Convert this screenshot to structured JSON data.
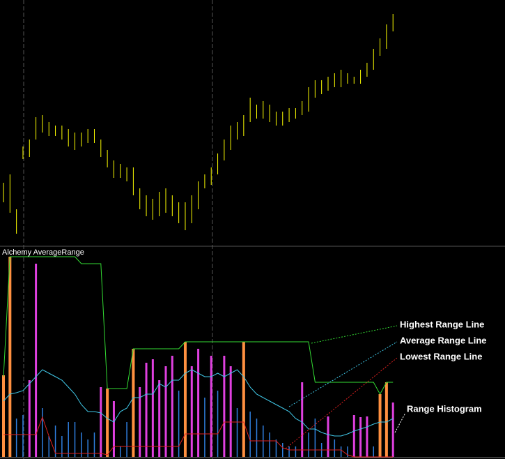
{
  "chart_data": [
    {
      "type": "ohlc",
      "color": "#ffff00",
      "ylim": [
        0,
        350
      ],
      "high": [
        88,
        100,
        50,
        140,
        150,
        182,
        185,
        175,
        170,
        170,
        165,
        160,
        160,
        165,
        165,
        150,
        135,
        120,
        115,
        110,
        110,
        80,
        70,
        65,
        75,
        80,
        70,
        60,
        60,
        70,
        90,
        100,
        110,
        130,
        150,
        170,
        175,
        185,
        210,
        200,
        205,
        200,
        190,
        190,
        195,
        195,
        205,
        225,
        235,
        235,
        240,
        245,
        250,
        245,
        240,
        250,
        260,
        280,
        295,
        315,
        330
      ],
      "low": [
        60,
        45,
        15,
        122,
        125,
        150,
        160,
        155,
        155,
        150,
        140,
        135,
        140,
        145,
        145,
        125,
        110,
        95,
        95,
        90,
        70,
        50,
        40,
        35,
        40,
        45,
        40,
        30,
        20,
        30,
        50,
        80,
        85,
        100,
        120,
        135,
        150,
        155,
        175,
        180,
        180,
        175,
        170,
        170,
        175,
        180,
        185,
        190,
        210,
        215,
        220,
        225,
        225,
        230,
        230,
        230,
        240,
        250,
        270,
        280,
        305
      ]
    },
    {
      "type": "line",
      "title": "Alchemy AverageRange",
      "ylim": [
        0,
        300
      ],
      "series": [
        {
          "name": "Highest Range Line",
          "color": "#33dd33",
          "values": [
            115,
            287,
            287,
            287,
            287,
            287,
            287,
            287,
            287,
            287,
            287,
            287,
            277,
            277,
            277,
            277,
            98,
            98,
            98,
            98,
            155,
            155,
            155,
            155,
            155,
            155,
            155,
            155,
            165,
            165,
            165,
            165,
            165,
            165,
            165,
            165,
            165,
            165,
            165,
            165,
            165,
            165,
            165,
            165,
            165,
            165,
            165,
            165,
            107,
            107,
            107,
            107,
            107,
            107,
            107,
            107,
            107,
            107,
            90,
            107,
            107
          ]
        },
        {
          "name": "Average Range Line",
          "color": "#40c8e8",
          "values": [
            80,
            90,
            92,
            95,
            105,
            115,
            125,
            120,
            115,
            110,
            100,
            90,
            75,
            65,
            65,
            63,
            55,
            50,
            65,
            70,
            85,
            85,
            90,
            90,
            105,
            100,
            110,
            110,
            120,
            125,
            120,
            115,
            115,
            120,
            115,
            120,
            125,
            115,
            100,
            90,
            85,
            80,
            75,
            70,
            65,
            55,
            50,
            40,
            40,
            35,
            32,
            30,
            30,
            33,
            37,
            40,
            43,
            47,
            50,
            50,
            55
          ]
        },
        {
          "name": "Lowest Range Line",
          "color": "#e02020",
          "values": [
            32,
            32,
            32,
            32,
            32,
            32,
            57,
            30,
            5,
            5,
            5,
            5,
            5,
            5,
            5,
            5,
            3,
            15,
            15,
            15,
            15,
            15,
            15,
            15,
            15,
            15,
            15,
            15,
            33,
            33,
            33,
            33,
            33,
            33,
            50,
            50,
            50,
            50,
            23,
            23,
            23,
            23,
            23,
            13,
            10,
            10,
            10,
            10,
            10,
            10,
            10,
            10,
            10,
            3,
            0,
            0,
            0,
            0,
            0,
            0,
            0
          ]
        }
      ],
      "histogram": {
        "name": "Range Histogram",
        "values": [
          117,
          287,
          55,
          60,
          110,
          277,
          70,
          30,
          45,
          30,
          50,
          50,
          35,
          25,
          35,
          100,
          98,
          80,
          15,
          50,
          155,
          100,
          135,
          140,
          110,
          130,
          145,
          95,
          165,
          130,
          155,
          85,
          145,
          95,
          145,
          130,
          70,
          165,
          65,
          55,
          45,
          35,
          25,
          20,
          15,
          15,
          107,
          35,
          55,
          20,
          58,
          25,
          15,
          15,
          60,
          57,
          58,
          15,
          90,
          107,
          78
        ],
        "colors": [
          "#ff9040",
          "#ff9040",
          "#2f7fdf",
          "#2f7fdf",
          "#e040e0",
          "#e040e0",
          "#2f7fdf",
          "#2f7fdf",
          "#2f7fdf",
          "#2f7fdf",
          "#2f7fdf",
          "#2f7fdf",
          "#2f7fdf",
          "#2f7fdf",
          "#2f7fdf",
          "#e040e0",
          "#ff9040",
          "#e040e0",
          "#2f7fdf",
          "#2f7fdf",
          "#ff9040",
          "#e040e0",
          "#e040e0",
          "#e040e0",
          "#e040e0",
          "#e040e0",
          "#e040e0",
          "#2f7fdf",
          "#ff9040",
          "#e040e0",
          "#e040e0",
          "#2f7fdf",
          "#e040e0",
          "#2f7fdf",
          "#e040e0",
          "#e040e0",
          "#2f7fdf",
          "#ff9040",
          "#2f7fdf",
          "#2f7fdf",
          "#2f7fdf",
          "#2f7fdf",
          "#2f7fdf",
          "#2f7fdf",
          "#2f7fdf",
          "#2f7fdf",
          "#e040e0",
          "#2f7fdf",
          "#2f7fdf",
          "#2f7fdf",
          "#e040e0",
          "#2f7fdf",
          "#2f7fdf",
          "#2f7fdf",
          "#e040e0",
          "#e040e0",
          "#e040e0",
          "#2f7fdf",
          "#ff9040",
          "#ff9040",
          "#e040e0"
        ]
      }
    }
  ]
}
